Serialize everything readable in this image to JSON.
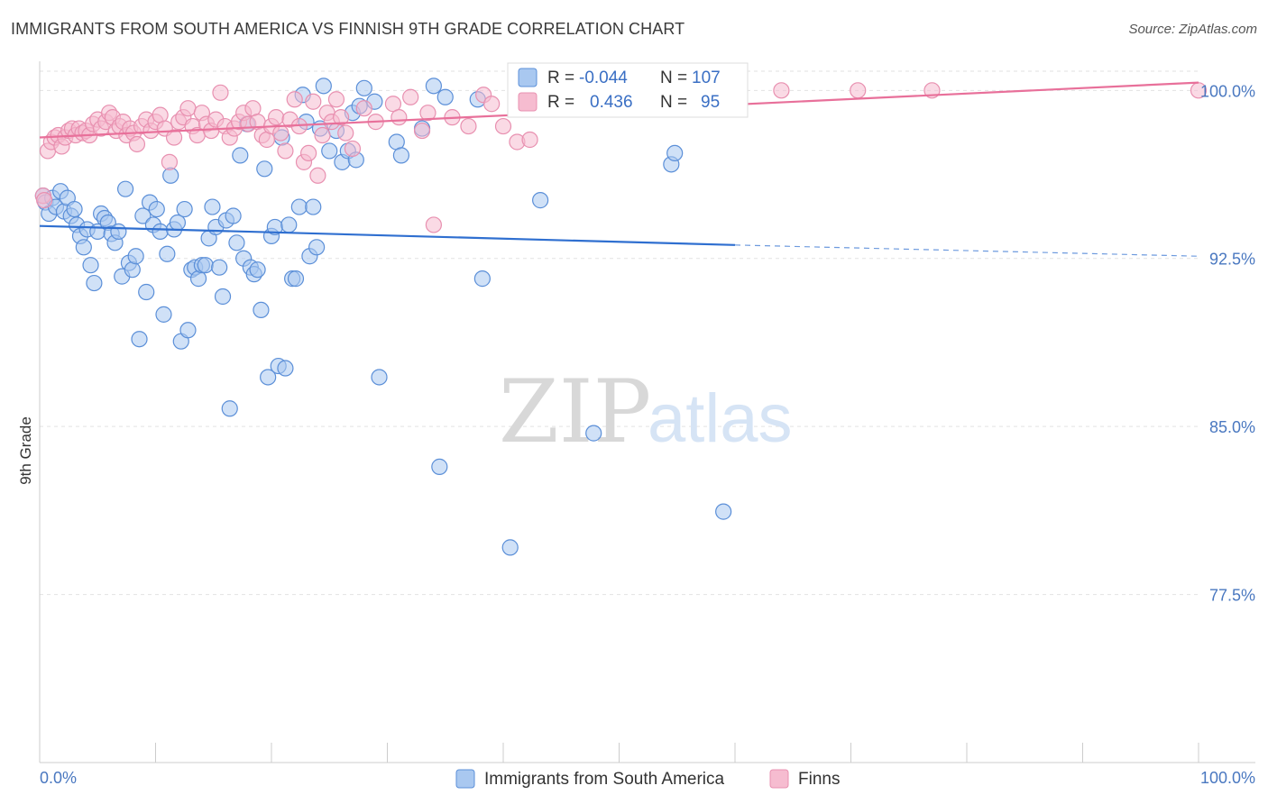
{
  "title": "IMMIGRANTS FROM SOUTH AMERICA VS FINNISH 9TH GRADE CORRELATION CHART",
  "source": "Source: ZipAtlas.com",
  "watermark": {
    "zip": "ZIP",
    "atlas": "atlas"
  },
  "colors": {
    "blue_fill": "#a9c8f0",
    "blue_stroke": "#5b8fd8",
    "blue_line": "#2f6fd0",
    "pink_fill": "#f6bcd0",
    "pink_stroke": "#e890b0",
    "pink_line": "#e8709a"
  },
  "legend": {
    "r_label": "R =",
    "n_label": "N =",
    "blue_r": "-0.044",
    "blue_n": "107",
    "pink_r": "0.436",
    "pink_n": "95"
  },
  "chart_data": {
    "type": "scatter",
    "title": "IMMIGRANTS FROM SOUTH AMERICA VS FINNISH 9TH GRADE CORRELATION CHART",
    "xlabel": "",
    "ylabel": "9th Grade",
    "xlim": [
      0,
      100
    ],
    "ylim": [
      70.0,
      101.3
    ],
    "x_tick_labels": [
      "0.0%",
      "100.0%"
    ],
    "y_ticks": [
      77.5,
      85.0,
      92.5,
      100.0
    ],
    "y_tick_labels": [
      "77.5%",
      "85.0%",
      "92.5%",
      "100.0%"
    ],
    "grid": true,
    "legend_position": "top-center",
    "series": [
      {
        "name": "Immigrants from South America",
        "trend": {
          "x0": 0,
          "y0": 93.95,
          "x1": 60,
          "y1": 93.1,
          "x_dash_end": 100,
          "y_dash_end": 92.6
        },
        "points": [
          [
            0.3,
            95.3
          ],
          [
            0.5,
            95.0
          ],
          [
            0.8,
            94.5
          ],
          [
            1.1,
            95.2
          ],
          [
            1.4,
            94.8
          ],
          [
            1.8,
            95.5
          ],
          [
            2.1,
            94.6
          ],
          [
            2.4,
            95.2
          ],
          [
            2.7,
            94.4
          ],
          [
            3.0,
            94.7
          ],
          [
            3.2,
            94.0
          ],
          [
            3.5,
            93.5
          ],
          [
            3.8,
            93.0
          ],
          [
            4.1,
            93.8
          ],
          [
            4.4,
            92.2
          ],
          [
            4.7,
            91.4
          ],
          [
            5.0,
            93.7
          ],
          [
            5.3,
            94.5
          ],
          [
            5.6,
            94.3
          ],
          [
            5.9,
            94.1
          ],
          [
            6.2,
            93.6
          ],
          [
            6.5,
            93.2
          ],
          [
            6.8,
            93.7
          ],
          [
            7.1,
            91.7
          ],
          [
            7.4,
            95.6
          ],
          [
            7.7,
            92.3
          ],
          [
            8.0,
            92.0
          ],
          [
            8.3,
            92.6
          ],
          [
            8.6,
            88.9
          ],
          [
            8.9,
            94.4
          ],
          [
            9.2,
            91.0
          ],
          [
            9.5,
            95.0
          ],
          [
            9.8,
            94.0
          ],
          [
            10.1,
            94.7
          ],
          [
            10.4,
            93.7
          ],
          [
            10.7,
            90.0
          ],
          [
            11.0,
            92.7
          ],
          [
            11.3,
            96.2
          ],
          [
            11.6,
            93.8
          ],
          [
            11.9,
            94.1
          ],
          [
            12.2,
            88.8
          ],
          [
            12.5,
            94.7
          ],
          [
            12.8,
            89.3
          ],
          [
            13.1,
            92.0
          ],
          [
            13.4,
            92.1
          ],
          [
            13.7,
            91.6
          ],
          [
            14.0,
            92.2
          ],
          [
            14.3,
            92.2
          ],
          [
            14.6,
            93.4
          ],
          [
            14.9,
            94.8
          ],
          [
            15.2,
            93.9
          ],
          [
            15.5,
            92.1
          ],
          [
            15.8,
            90.8
          ],
          [
            16.1,
            94.2
          ],
          [
            16.4,
            85.8
          ],
          [
            16.7,
            94.4
          ],
          [
            17.0,
            93.2
          ],
          [
            17.3,
            97.1
          ],
          [
            17.6,
            92.5
          ],
          [
            17.9,
            98.5
          ],
          [
            18.2,
            92.1
          ],
          [
            18.5,
            91.8
          ],
          [
            18.8,
            92.0
          ],
          [
            19.1,
            90.2
          ],
          [
            19.4,
            96.5
          ],
          [
            19.7,
            87.2
          ],
          [
            20.0,
            93.5
          ],
          [
            20.3,
            93.9
          ],
          [
            20.6,
            87.7
          ],
          [
            20.9,
            97.9
          ],
          [
            21.2,
            87.6
          ],
          [
            21.5,
            94.0
          ],
          [
            21.8,
            91.6
          ],
          [
            22.1,
            91.6
          ],
          [
            22.4,
            94.8
          ],
          [
            22.7,
            99.8
          ],
          [
            23.0,
            98.6
          ],
          [
            23.3,
            92.6
          ],
          [
            23.6,
            94.8
          ],
          [
            23.9,
            93.0
          ],
          [
            24.2,
            98.3
          ],
          [
            24.5,
            100.2
          ],
          [
            25.0,
            97.3
          ],
          [
            25.6,
            98.2
          ],
          [
            26.1,
            96.8
          ],
          [
            26.6,
            97.3
          ],
          [
            27.0,
            99.0
          ],
          [
            27.3,
            96.9
          ],
          [
            27.6,
            99.3
          ],
          [
            28.0,
            100.1
          ],
          [
            28.9,
            99.5
          ],
          [
            29.3,
            87.2
          ],
          [
            30.8,
            97.7
          ],
          [
            31.2,
            97.1
          ],
          [
            33.0,
            98.3
          ],
          [
            34.0,
            100.2
          ],
          [
            35.0,
            99.7
          ],
          [
            34.5,
            83.2
          ],
          [
            37.8,
            99.6
          ],
          [
            38.2,
            91.6
          ],
          [
            40.6,
            79.6
          ],
          [
            43.2,
            95.1
          ],
          [
            47.8,
            84.7
          ],
          [
            54.0,
            99.8
          ],
          [
            54.5,
            96.7
          ],
          [
            54.8,
            97.2
          ],
          [
            59.0,
            81.2
          ]
        ]
      },
      {
        "name": "Finns",
        "trend": {
          "x0": 0,
          "y0": 97.9,
          "x1": 100,
          "y1": 100.35
        },
        "points": [
          [
            0.3,
            95.3
          ],
          [
            0.4,
            95.1
          ],
          [
            0.7,
            97.3
          ],
          [
            1.0,
            97.7
          ],
          [
            1.3,
            97.9
          ],
          [
            1.6,
            98.0
          ],
          [
            1.9,
            97.5
          ],
          [
            2.2,
            97.9
          ],
          [
            2.5,
            98.2
          ],
          [
            2.8,
            98.3
          ],
          [
            3.1,
            98.0
          ],
          [
            3.4,
            98.3
          ],
          [
            3.7,
            98.1
          ],
          [
            4.0,
            98.2
          ],
          [
            4.3,
            98.0
          ],
          [
            4.6,
            98.5
          ],
          [
            5.0,
            98.7
          ],
          [
            5.3,
            98.3
          ],
          [
            5.7,
            98.6
          ],
          [
            6.0,
            99.0
          ],
          [
            6.3,
            98.8
          ],
          [
            6.6,
            98.2
          ],
          [
            6.9,
            98.4
          ],
          [
            7.2,
            98.6
          ],
          [
            7.5,
            98.0
          ],
          [
            7.8,
            98.3
          ],
          [
            8.1,
            98.1
          ],
          [
            8.4,
            97.6
          ],
          [
            8.8,
            98.4
          ],
          [
            9.2,
            98.7
          ],
          [
            9.6,
            98.2
          ],
          [
            10.0,
            98.6
          ],
          [
            10.4,
            98.9
          ],
          [
            10.8,
            98.3
          ],
          [
            11.2,
            96.8
          ],
          [
            11.6,
            97.9
          ],
          [
            12.0,
            98.6
          ],
          [
            12.4,
            98.8
          ],
          [
            12.8,
            99.2
          ],
          [
            13.2,
            98.4
          ],
          [
            13.6,
            98.0
          ],
          [
            14.0,
            99.0
          ],
          [
            14.4,
            98.5
          ],
          [
            14.8,
            98.2
          ],
          [
            15.2,
            98.7
          ],
          [
            15.6,
            99.9
          ],
          [
            16.0,
            98.4
          ],
          [
            16.4,
            97.9
          ],
          [
            16.8,
            98.3
          ],
          [
            17.2,
            98.6
          ],
          [
            17.6,
            99.0
          ],
          [
            18.0,
            98.5
          ],
          [
            18.4,
            99.2
          ],
          [
            18.8,
            98.6
          ],
          [
            19.2,
            98.0
          ],
          [
            19.6,
            97.8
          ],
          [
            20.0,
            98.4
          ],
          [
            20.4,
            98.8
          ],
          [
            20.8,
            98.1
          ],
          [
            21.2,
            97.3
          ],
          [
            21.6,
            98.7
          ],
          [
            22.0,
            99.6
          ],
          [
            22.4,
            98.4
          ],
          [
            22.8,
            96.8
          ],
          [
            23.2,
            97.2
          ],
          [
            23.6,
            99.5
          ],
          [
            24.0,
            96.2
          ],
          [
            24.4,
            98.0
          ],
          [
            24.8,
            99.0
          ],
          [
            25.2,
            98.6
          ],
          [
            25.6,
            99.6
          ],
          [
            26.0,
            98.8
          ],
          [
            26.4,
            98.1
          ],
          [
            27.0,
            97.4
          ],
          [
            28.0,
            99.2
          ],
          [
            29.0,
            98.6
          ],
          [
            30.5,
            99.4
          ],
          [
            31.0,
            98.8
          ],
          [
            32.0,
            99.7
          ],
          [
            33.0,
            98.2
          ],
          [
            33.5,
            99.0
          ],
          [
            34.0,
            94.0
          ],
          [
            35.6,
            98.8
          ],
          [
            37.0,
            98.4
          ],
          [
            38.3,
            99.8
          ],
          [
            39.0,
            99.4
          ],
          [
            40.0,
            98.4
          ],
          [
            41.2,
            97.7
          ],
          [
            42.3,
            97.8
          ],
          [
            45.0,
            100.0
          ],
          [
            53.7,
            100.0
          ],
          [
            64.0,
            100.0
          ],
          [
            70.6,
            100.0
          ],
          [
            77.0,
            100.0
          ],
          [
            100.0,
            100.0
          ]
        ]
      }
    ]
  }
}
